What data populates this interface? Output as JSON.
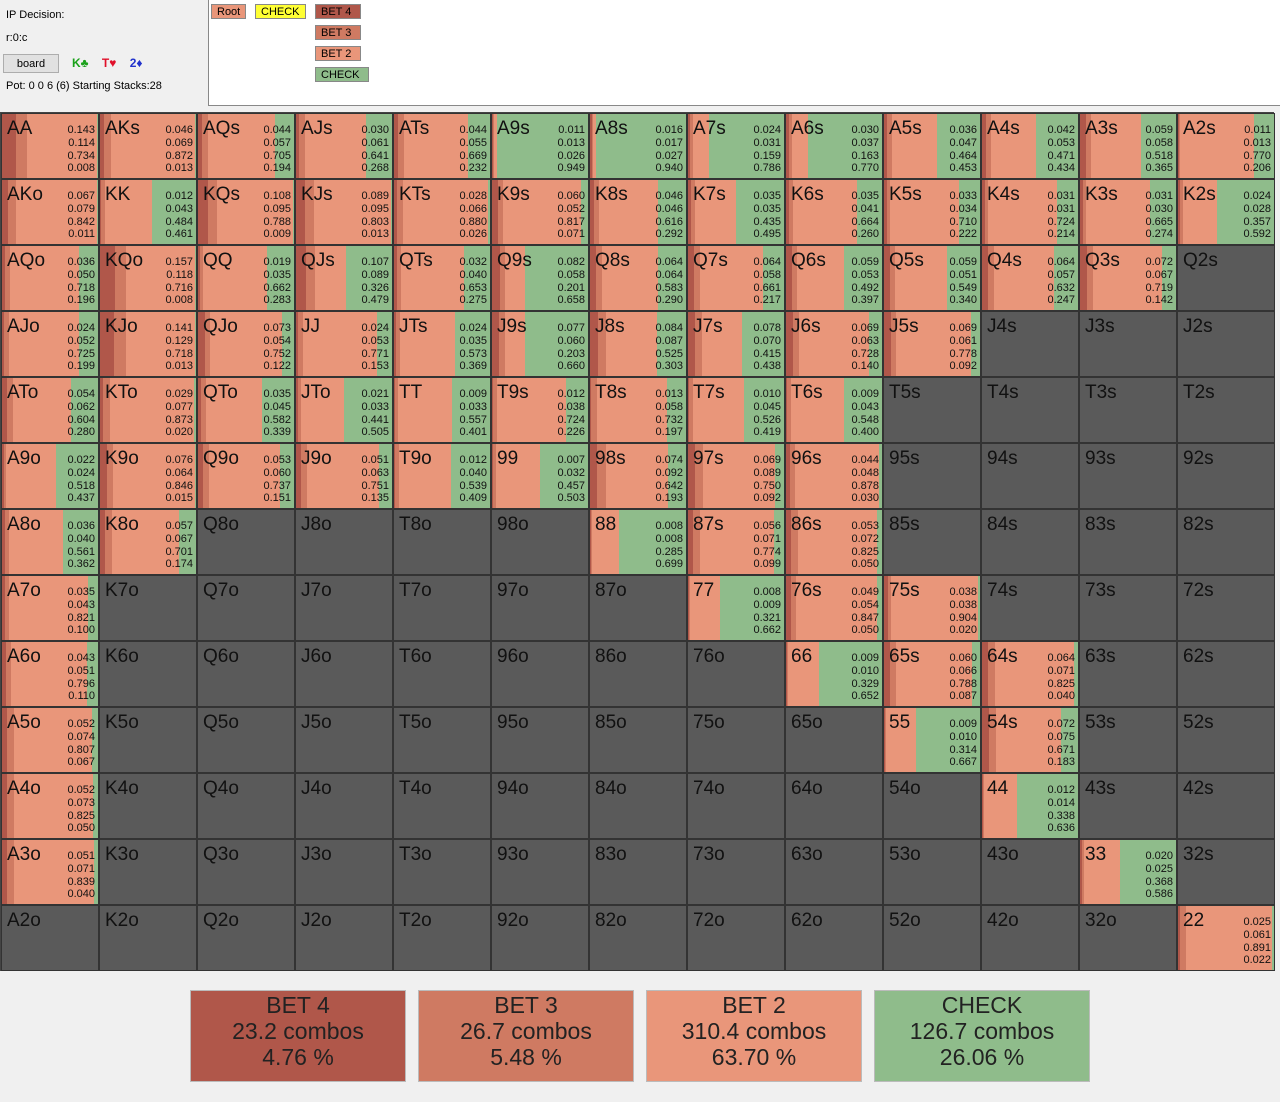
{
  "header": {
    "decision_label": "IP Decision:",
    "line": "r:0:c",
    "board_button": "board",
    "board_cards": [
      {
        "text": "K♣",
        "color": "#1aa11a"
      },
      {
        "text": "T♥",
        "color": "#e0102a"
      },
      {
        "text": "2♦",
        "color": "#2233cc"
      }
    ],
    "pot_info": "Pot: 0 0 6 (6) Starting Stacks:28"
  },
  "tree": {
    "nodes": [
      {
        "label": "Root",
        "color": "#e9967a"
      },
      {
        "label": "CHECK",
        "color": "#ffff33"
      },
      {
        "label": "BET 4",
        "color": "#b0574a"
      },
      {
        "label": "BET 3",
        "color": "#cf7a62"
      },
      {
        "label": "BET 2",
        "color": "#e9967a"
      },
      {
        "label": "CHECK",
        "color": "#8fbc8b"
      }
    ]
  },
  "colors": {
    "bet4": "#b0574a",
    "bet3": "#cf7a62",
    "bet2": "#e9967a",
    "check": "#8fbc8b",
    "empty": "#5a5a5a"
  },
  "grid": [
    [
      {
        "hand": "AA",
        "v": [
          "0.143",
          "0.114",
          "0.734",
          "0.008"
        ]
      },
      {
        "hand": "AKs",
        "v": [
          "0.046",
          "0.069",
          "0.872",
          "0.013"
        ]
      },
      {
        "hand": "AQs",
        "v": [
          "0.044",
          "0.057",
          "0.705",
          "0.194"
        ]
      },
      {
        "hand": "AJs",
        "v": [
          "0.030",
          "0.061",
          "0.641",
          "0.268"
        ]
      },
      {
        "hand": "ATs",
        "v": [
          "0.044",
          "0.055",
          "0.669",
          "0.232"
        ]
      },
      {
        "hand": "A9s",
        "v": [
          "0.011",
          "0.013",
          "0.026",
          "0.949"
        ]
      },
      {
        "hand": "A8s",
        "v": [
          "0.016",
          "0.017",
          "0.027",
          "0.940"
        ]
      },
      {
        "hand": "A7s",
        "v": [
          "0.024",
          "0.031",
          "0.159",
          "0.786"
        ]
      },
      {
        "hand": "A6s",
        "v": [
          "0.030",
          "0.037",
          "0.163",
          "0.770"
        ]
      },
      {
        "hand": "A5s",
        "v": [
          "0.036",
          "0.047",
          "0.464",
          "0.453"
        ]
      },
      {
        "hand": "A4s",
        "v": [
          "0.042",
          "0.053",
          "0.471",
          "0.434"
        ]
      },
      {
        "hand": "A3s",
        "v": [
          "0.059",
          "0.058",
          "0.518",
          "0.365"
        ]
      },
      {
        "hand": "A2s",
        "v": [
          "0.011",
          "0.013",
          "0.770",
          "0.206"
        ]
      }
    ],
    [
      {
        "hand": "AKo",
        "v": [
          "0.067",
          "0.079",
          "0.842",
          "0.011"
        ]
      },
      {
        "hand": "KK",
        "v": [
          "0.012",
          "0.043",
          "0.484",
          "0.461"
        ]
      },
      {
        "hand": "KQs",
        "v": [
          "0.108",
          "0.095",
          "0.788",
          "0.009"
        ]
      },
      {
        "hand": "KJs",
        "v": [
          "0.089",
          "0.095",
          "0.803",
          "0.013"
        ]
      },
      {
        "hand": "KTs",
        "v": [
          "0.028",
          "0.066",
          "0.880",
          "0.026"
        ]
      },
      {
        "hand": "K9s",
        "v": [
          "0.060",
          "0.052",
          "0.817",
          "0.071"
        ]
      },
      {
        "hand": "K8s",
        "v": [
          "0.046",
          "0.046",
          "0.616",
          "0.292"
        ]
      },
      {
        "hand": "K7s",
        "v": [
          "0.035",
          "0.035",
          "0.435",
          "0.495"
        ]
      },
      {
        "hand": "K6s",
        "v": [
          "0.035",
          "0.041",
          "0.664",
          "0.260"
        ]
      },
      {
        "hand": "K5s",
        "v": [
          "0.033",
          "0.034",
          "0.710",
          "0.222"
        ]
      },
      {
        "hand": "K4s",
        "v": [
          "0.031",
          "0.031",
          "0.724",
          "0.214"
        ]
      },
      {
        "hand": "K3s",
        "v": [
          "0.031",
          "0.030",
          "0.665",
          "0.274"
        ]
      },
      {
        "hand": "K2s",
        "v": [
          "0.024",
          "0.028",
          "0.357",
          "0.592"
        ]
      }
    ],
    [
      {
        "hand": "AQo",
        "v": [
          "0.036",
          "0.050",
          "0.718",
          "0.196"
        ]
      },
      {
        "hand": "KQo",
        "v": [
          "0.157",
          "0.118",
          "0.716",
          "0.008"
        ]
      },
      {
        "hand": "QQ",
        "v": [
          "0.019",
          "0.035",
          "0.662",
          "0.283"
        ]
      },
      {
        "hand": "QJs",
        "v": [
          "0.107",
          "0.089",
          "0.326",
          "0.479"
        ]
      },
      {
        "hand": "QTs",
        "v": [
          "0.032",
          "0.040",
          "0.653",
          "0.275"
        ]
      },
      {
        "hand": "Q9s",
        "v": [
          "0.082",
          "0.058",
          "0.201",
          "0.658"
        ]
      },
      {
        "hand": "Q8s",
        "v": [
          "0.064",
          "0.064",
          "0.583",
          "0.290"
        ]
      },
      {
        "hand": "Q7s",
        "v": [
          "0.064",
          "0.058",
          "0.661",
          "0.217"
        ]
      },
      {
        "hand": "Q6s",
        "v": [
          "0.059",
          "0.053",
          "0.492",
          "0.397"
        ]
      },
      {
        "hand": "Q5s",
        "v": [
          "0.059",
          "0.051",
          "0.549",
          "0.340"
        ]
      },
      {
        "hand": "Q4s",
        "v": [
          "0.064",
          "0.057",
          "0.632",
          "0.247"
        ]
      },
      {
        "hand": "Q3s",
        "v": [
          "0.072",
          "0.067",
          "0.719",
          "0.142"
        ]
      },
      {
        "hand": "Q2s",
        "v": null
      }
    ],
    [
      {
        "hand": "AJo",
        "v": [
          "0.024",
          "0.052",
          "0.725",
          "0.199"
        ]
      },
      {
        "hand": "KJo",
        "v": [
          "0.141",
          "0.129",
          "0.718",
          "0.013"
        ]
      },
      {
        "hand": "QJo",
        "v": [
          "0.073",
          "0.054",
          "0.752",
          "0.122"
        ]
      },
      {
        "hand": "JJ",
        "v": [
          "0.024",
          "0.053",
          "0.771",
          "0.153"
        ]
      },
      {
        "hand": "JTs",
        "v": [
          "0.024",
          "0.035",
          "0.573",
          "0.369"
        ]
      },
      {
        "hand": "J9s",
        "v": [
          "0.077",
          "0.060",
          "0.203",
          "0.660"
        ]
      },
      {
        "hand": "J8s",
        "v": [
          "0.084",
          "0.087",
          "0.525",
          "0.303"
        ]
      },
      {
        "hand": "J7s",
        "v": [
          "0.078",
          "0.070",
          "0.415",
          "0.438"
        ]
      },
      {
        "hand": "J6s",
        "v": [
          "0.069",
          "0.063",
          "0.728",
          "0.140"
        ]
      },
      {
        "hand": "J5s",
        "v": [
          "0.069",
          "0.061",
          "0.778",
          "0.092"
        ]
      },
      {
        "hand": "J4s",
        "v": null
      },
      {
        "hand": "J3s",
        "v": null
      },
      {
        "hand": "J2s",
        "v": null
      }
    ],
    [
      {
        "hand": "ATo",
        "v": [
          "0.054",
          "0.062",
          "0.604",
          "0.280"
        ]
      },
      {
        "hand": "KTo",
        "v": [
          "0.029",
          "0.077",
          "0.873",
          "0.020"
        ]
      },
      {
        "hand": "QTo",
        "v": [
          "0.035",
          "0.045",
          "0.582",
          "0.339"
        ]
      },
      {
        "hand": "JTo",
        "v": [
          "0.021",
          "0.033",
          "0.441",
          "0.505"
        ]
      },
      {
        "hand": "TT",
        "v": [
          "0.009",
          "0.033",
          "0.557",
          "0.401"
        ]
      },
      {
        "hand": "T9s",
        "v": [
          "0.012",
          "0.038",
          "0.724",
          "0.226"
        ]
      },
      {
        "hand": "T8s",
        "v": [
          "0.013",
          "0.058",
          "0.732",
          "0.197"
        ]
      },
      {
        "hand": "T7s",
        "v": [
          "0.010",
          "0.045",
          "0.526",
          "0.419"
        ]
      },
      {
        "hand": "T6s",
        "v": [
          "0.009",
          "0.043",
          "0.548",
          "0.400"
        ]
      },
      {
        "hand": "T5s",
        "v": null
      },
      {
        "hand": "T4s",
        "v": null
      },
      {
        "hand": "T3s",
        "v": null
      },
      {
        "hand": "T2s",
        "v": null
      }
    ],
    [
      {
        "hand": "A9o",
        "v": [
          "0.022",
          "0.024",
          "0.518",
          "0.437"
        ]
      },
      {
        "hand": "K9o",
        "v": [
          "0.076",
          "0.064",
          "0.846",
          "0.015"
        ]
      },
      {
        "hand": "Q9o",
        "v": [
          "0.053",
          "0.060",
          "0.737",
          "0.151"
        ]
      },
      {
        "hand": "J9o",
        "v": [
          "0.051",
          "0.063",
          "0.751",
          "0.135"
        ]
      },
      {
        "hand": "T9o",
        "v": [
          "0.012",
          "0.040",
          "0.539",
          "0.409"
        ]
      },
      {
        "hand": "99",
        "v": [
          "0.007",
          "0.032",
          "0.457",
          "0.503"
        ]
      },
      {
        "hand": "98s",
        "v": [
          "0.074",
          "0.092",
          "0.642",
          "0.193"
        ]
      },
      {
        "hand": "97s",
        "v": [
          "0.069",
          "0.089",
          "0.750",
          "0.092"
        ]
      },
      {
        "hand": "96s",
        "v": [
          "0.044",
          "0.048",
          "0.878",
          "0.030"
        ]
      },
      {
        "hand": "95s",
        "v": null
      },
      {
        "hand": "94s",
        "v": null
      },
      {
        "hand": "93s",
        "v": null
      },
      {
        "hand": "92s",
        "v": null
      }
    ],
    [
      {
        "hand": "A8o",
        "v": [
          "0.036",
          "0.040",
          "0.561",
          "0.362"
        ]
      },
      {
        "hand": "K8o",
        "v": [
          "0.057",
          "0.067",
          "0.701",
          "0.174"
        ]
      },
      {
        "hand": "Q8o",
        "v": null
      },
      {
        "hand": "J8o",
        "v": null
      },
      {
        "hand": "T8o",
        "v": null
      },
      {
        "hand": "98o",
        "v": null
      },
      {
        "hand": "88",
        "v": [
          "0.008",
          "0.008",
          "0.285",
          "0.699"
        ]
      },
      {
        "hand": "87s",
        "v": [
          "0.056",
          "0.071",
          "0.774",
          "0.099"
        ]
      },
      {
        "hand": "86s",
        "v": [
          "0.053",
          "0.072",
          "0.825",
          "0.050"
        ]
      },
      {
        "hand": "85s",
        "v": null
      },
      {
        "hand": "84s",
        "v": null
      },
      {
        "hand": "83s",
        "v": null
      },
      {
        "hand": "82s",
        "v": null
      }
    ],
    [
      {
        "hand": "A7o",
        "v": [
          "0.035",
          "0.043",
          "0.821",
          "0.100"
        ]
      },
      {
        "hand": "K7o",
        "v": null
      },
      {
        "hand": "Q7o",
        "v": null
      },
      {
        "hand": "J7o",
        "v": null
      },
      {
        "hand": "T7o",
        "v": null
      },
      {
        "hand": "97o",
        "v": null
      },
      {
        "hand": "87o",
        "v": null
      },
      {
        "hand": "77",
        "v": [
          "0.008",
          "0.009",
          "0.321",
          "0.662"
        ]
      },
      {
        "hand": "76s",
        "v": [
          "0.049",
          "0.054",
          "0.847",
          "0.050"
        ]
      },
      {
        "hand": "75s",
        "v": [
          "0.038",
          "0.038",
          "0.904",
          "0.020"
        ]
      },
      {
        "hand": "74s",
        "v": null
      },
      {
        "hand": "73s",
        "v": null
      },
      {
        "hand": "72s",
        "v": null
      }
    ],
    [
      {
        "hand": "A6o",
        "v": [
          "0.043",
          "0.051",
          "0.796",
          "0.110"
        ]
      },
      {
        "hand": "K6o",
        "v": null
      },
      {
        "hand": "Q6o",
        "v": null
      },
      {
        "hand": "J6o",
        "v": null
      },
      {
        "hand": "T6o",
        "v": null
      },
      {
        "hand": "96o",
        "v": null
      },
      {
        "hand": "86o",
        "v": null
      },
      {
        "hand": "76o",
        "v": null
      },
      {
        "hand": "66",
        "v": [
          "0.009",
          "0.010",
          "0.329",
          "0.652"
        ]
      },
      {
        "hand": "65s",
        "v": [
          "0.060",
          "0.066",
          "0.788",
          "0.087"
        ]
      },
      {
        "hand": "64s",
        "v": [
          "0.064",
          "0.071",
          "0.825",
          "0.040"
        ]
      },
      {
        "hand": "63s",
        "v": null
      },
      {
        "hand": "62s",
        "v": null
      }
    ],
    [
      {
        "hand": "A5o",
        "v": [
          "0.052",
          "0.074",
          "0.807",
          "0.067"
        ]
      },
      {
        "hand": "K5o",
        "v": null
      },
      {
        "hand": "Q5o",
        "v": null
      },
      {
        "hand": "J5o",
        "v": null
      },
      {
        "hand": "T5o",
        "v": null
      },
      {
        "hand": "95o",
        "v": null
      },
      {
        "hand": "85o",
        "v": null
      },
      {
        "hand": "75o",
        "v": null
      },
      {
        "hand": "65o",
        "v": null
      },
      {
        "hand": "55",
        "v": [
          "0.009",
          "0.010",
          "0.314",
          "0.667"
        ]
      },
      {
        "hand": "54s",
        "v": [
          "0.072",
          "0.075",
          "0.671",
          "0.183"
        ]
      },
      {
        "hand": "53s",
        "v": null
      },
      {
        "hand": "52s",
        "v": null
      }
    ],
    [
      {
        "hand": "A4o",
        "v": [
          "0.052",
          "0.073",
          "0.825",
          "0.050"
        ]
      },
      {
        "hand": "K4o",
        "v": null
      },
      {
        "hand": "Q4o",
        "v": null
      },
      {
        "hand": "J4o",
        "v": null
      },
      {
        "hand": "T4o",
        "v": null
      },
      {
        "hand": "94o",
        "v": null
      },
      {
        "hand": "84o",
        "v": null
      },
      {
        "hand": "74o",
        "v": null
      },
      {
        "hand": "64o",
        "v": null
      },
      {
        "hand": "54o",
        "v": null
      },
      {
        "hand": "44",
        "v": [
          "0.012",
          "0.014",
          "0.338",
          "0.636"
        ]
      },
      {
        "hand": "43s",
        "v": null
      },
      {
        "hand": "42s",
        "v": null
      }
    ],
    [
      {
        "hand": "A3o",
        "v": [
          "0.051",
          "0.071",
          "0.839",
          "0.040"
        ]
      },
      {
        "hand": "K3o",
        "v": null
      },
      {
        "hand": "Q3o",
        "v": null
      },
      {
        "hand": "J3o",
        "v": null
      },
      {
        "hand": "T3o",
        "v": null
      },
      {
        "hand": "93o",
        "v": null
      },
      {
        "hand": "83o",
        "v": null
      },
      {
        "hand": "73o",
        "v": null
      },
      {
        "hand": "63o",
        "v": null
      },
      {
        "hand": "53o",
        "v": null
      },
      {
        "hand": "43o",
        "v": null
      },
      {
        "hand": "33",
        "v": [
          "0.020",
          "0.025",
          "0.368",
          "0.586"
        ]
      },
      {
        "hand": "32s",
        "v": null
      }
    ],
    [
      {
        "hand": "A2o",
        "v": null
      },
      {
        "hand": "K2o",
        "v": null
      },
      {
        "hand": "Q2o",
        "v": null
      },
      {
        "hand": "J2o",
        "v": null
      },
      {
        "hand": "T2o",
        "v": null
      },
      {
        "hand": "92o",
        "v": null
      },
      {
        "hand": "82o",
        "v": null
      },
      {
        "hand": "72o",
        "v": null
      },
      {
        "hand": "62o",
        "v": null
      },
      {
        "hand": "52o",
        "v": null
      },
      {
        "hand": "42o",
        "v": null
      },
      {
        "hand": "32o",
        "v": null
      },
      {
        "hand": "22",
        "v": [
          "0.025",
          "0.061",
          "0.891",
          "0.022"
        ]
      }
    ]
  ],
  "summary": [
    {
      "action": "BET 4",
      "combos": "23.2 combos",
      "pct": "4.76 %",
      "color": "#b0574a"
    },
    {
      "action": "BET 3",
      "combos": "26.7 combos",
      "pct": "5.48 %",
      "color": "#cf7a62"
    },
    {
      "action": "BET 2",
      "combos": "310.4 combos",
      "pct": "63.70 %",
      "color": "#e9967a"
    },
    {
      "action": "CHECK",
      "combos": "126.7 combos",
      "pct": "26.06 %",
      "color": "#8fbc8b"
    }
  ]
}
